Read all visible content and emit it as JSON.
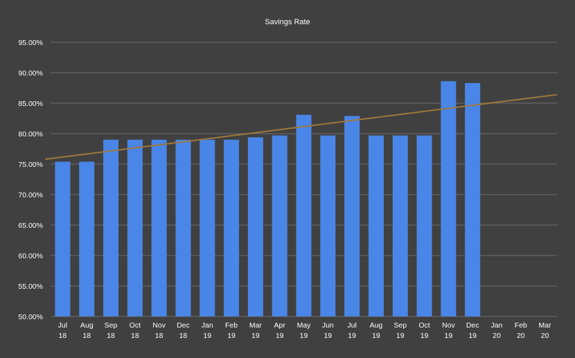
{
  "chart_data": {
    "type": "bar",
    "title": "Savings Rate",
    "xlabel": "",
    "ylabel": "",
    "categories": [
      [
        "Jul",
        "18"
      ],
      [
        "Aug",
        "18"
      ],
      [
        "Sep",
        "18"
      ],
      [
        "Oct",
        "18"
      ],
      [
        "Nov",
        "18"
      ],
      [
        "Dec",
        "18"
      ],
      [
        "Jan",
        "19"
      ],
      [
        "Feb",
        "19"
      ],
      [
        "Mar",
        "19"
      ],
      [
        "Apr",
        "19"
      ],
      [
        "May",
        "19"
      ],
      [
        "Jun",
        "19"
      ],
      [
        "Jul",
        "19"
      ],
      [
        "Aug",
        "19"
      ],
      [
        "Sep",
        "19"
      ],
      [
        "Oct",
        "19"
      ],
      [
        "Nov",
        "19"
      ],
      [
        "Dec",
        "19"
      ],
      [
        "Jan",
        "20"
      ],
      [
        "Feb",
        "20"
      ],
      [
        "Mar",
        "20"
      ]
    ],
    "series": [
      {
        "values": [
          75.4,
          75.4,
          79.0,
          79.0,
          79.0,
          79.0,
          79.0,
          79.0,
          79.4,
          79.7,
          83.1,
          79.7,
          82.9,
          79.7,
          79.7,
          79.7,
          88.6,
          88.3,
          null,
          null,
          null
        ],
        "color": "#4a86e8"
      }
    ],
    "trendline": {
      "type": "linear",
      "color": "#a0783c",
      "start": 75.8,
      "end": 86.4
    },
    "ylim": [
      50,
      95
    ],
    "yticks": [
      "50.00%",
      "55.00%",
      "60.00%",
      "65.00%",
      "70.00%",
      "75.00%",
      "80.00%",
      "85.00%",
      "90.00%",
      "95.00%"
    ],
    "ytick_values": [
      50,
      55,
      60,
      65,
      70,
      75,
      80,
      85,
      90,
      95
    ],
    "grid": true,
    "legend": "none",
    "background": "#404040",
    "text_color": "#ffffff"
  }
}
